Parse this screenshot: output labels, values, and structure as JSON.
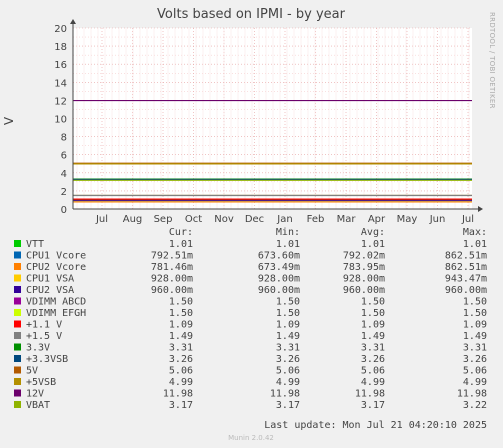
{
  "chart_data": {
    "type": "line",
    "title": "Volts based on IPMI - by year",
    "ylabel": "V",
    "ylim": [
      0,
      20
    ],
    "yticks": [
      "0",
      "2",
      "4",
      "6",
      "8",
      "10",
      "12",
      "14",
      "16",
      "18",
      "20"
    ],
    "xticks": [
      "Jul",
      "Aug",
      "Sep",
      "Oct",
      "Nov",
      "Dec",
      "Jan",
      "Feb",
      "Mar",
      "Apr",
      "May",
      "Jun",
      "Jul"
    ],
    "grid": true,
    "side_label": "RRDTOOL / TOBI OETIKER",
    "columns": [
      "Cur:",
      "Min:",
      "Avg:",
      "Max:"
    ],
    "series": [
      {
        "name": "VTT",
        "color": "#00cc00",
        "cur": "1.01",
        "min": "1.01",
        "avg": "1.01",
        "max": "1.01",
        "value": 1.01
      },
      {
        "name": "CPU1 Vcore",
        "color": "#0066b3",
        "cur": "792.51m",
        "min": "673.60m",
        "avg": "792.02m",
        "max": "862.51m",
        "value": 0.79
      },
      {
        "name": "CPU2 Vcore",
        "color": "#ff8000",
        "cur": "781.46m",
        "min": "673.49m",
        "avg": "783.95m",
        "max": "862.51m",
        "value": 0.78
      },
      {
        "name": "CPU1 VSA",
        "color": "#ffcc00",
        "cur": "928.00m",
        "min": "928.00m",
        "avg": "928.00m",
        "max": "943.47m",
        "value": 0.93
      },
      {
        "name": "CPU2 VSA",
        "color": "#330099",
        "cur": "960.00m",
        "min": "960.00m",
        "avg": "960.00m",
        "max": "960.00m",
        "value": 0.96
      },
      {
        "name": "VDIMM ABCD",
        "color": "#990099",
        "cur": "1.50",
        "min": "1.50",
        "avg": "1.50",
        "max": "1.50",
        "value": 1.5
      },
      {
        "name": "VDIMM EFGH",
        "color": "#ccff00",
        "cur": "1.50",
        "min": "1.50",
        "avg": "1.50",
        "max": "1.50",
        "value": 1.5
      },
      {
        "name": "+1.1 V",
        "color": "#ff0000",
        "cur": "1.09",
        "min": "1.09",
        "avg": "1.09",
        "max": "1.09",
        "value": 1.09
      },
      {
        "name": "+1.5 V",
        "color": "#808080",
        "cur": "1.49",
        "min": "1.49",
        "avg": "1.49",
        "max": "1.49",
        "value": 1.49
      },
      {
        "name": "3.3V",
        "color": "#008f00",
        "cur": "3.31",
        "min": "3.31",
        "avg": "3.31",
        "max": "3.31",
        "value": 3.31
      },
      {
        "name": "+3.3VSB",
        "color": "#00487d",
        "cur": "3.26",
        "min": "3.26",
        "avg": "3.26",
        "max": "3.26",
        "value": 3.26
      },
      {
        "name": "5V",
        "color": "#b35a00",
        "cur": "5.06",
        "min": "5.06",
        "avg": "5.06",
        "max": "5.06",
        "value": 5.06
      },
      {
        "name": "+5VSB",
        "color": "#b38f00",
        "cur": "4.99",
        "min": "4.99",
        "avg": "4.99",
        "max": "4.99",
        "value": 4.99
      },
      {
        "name": "12V",
        "color": "#6b006b",
        "cur": "11.98",
        "min": "11.98",
        "avg": "11.98",
        "max": "11.98",
        "value": 11.98
      },
      {
        "name": "VBAT",
        "color": "#8fb300",
        "cur": "3.17",
        "min": "3.17",
        "avg": "3.17",
        "max": "3.22",
        "value": 3.17
      }
    ]
  },
  "footer": {
    "last_update": "Last update: Mon Jul 21 04:20:10 2025",
    "munin": "Munin 2.0.42"
  }
}
